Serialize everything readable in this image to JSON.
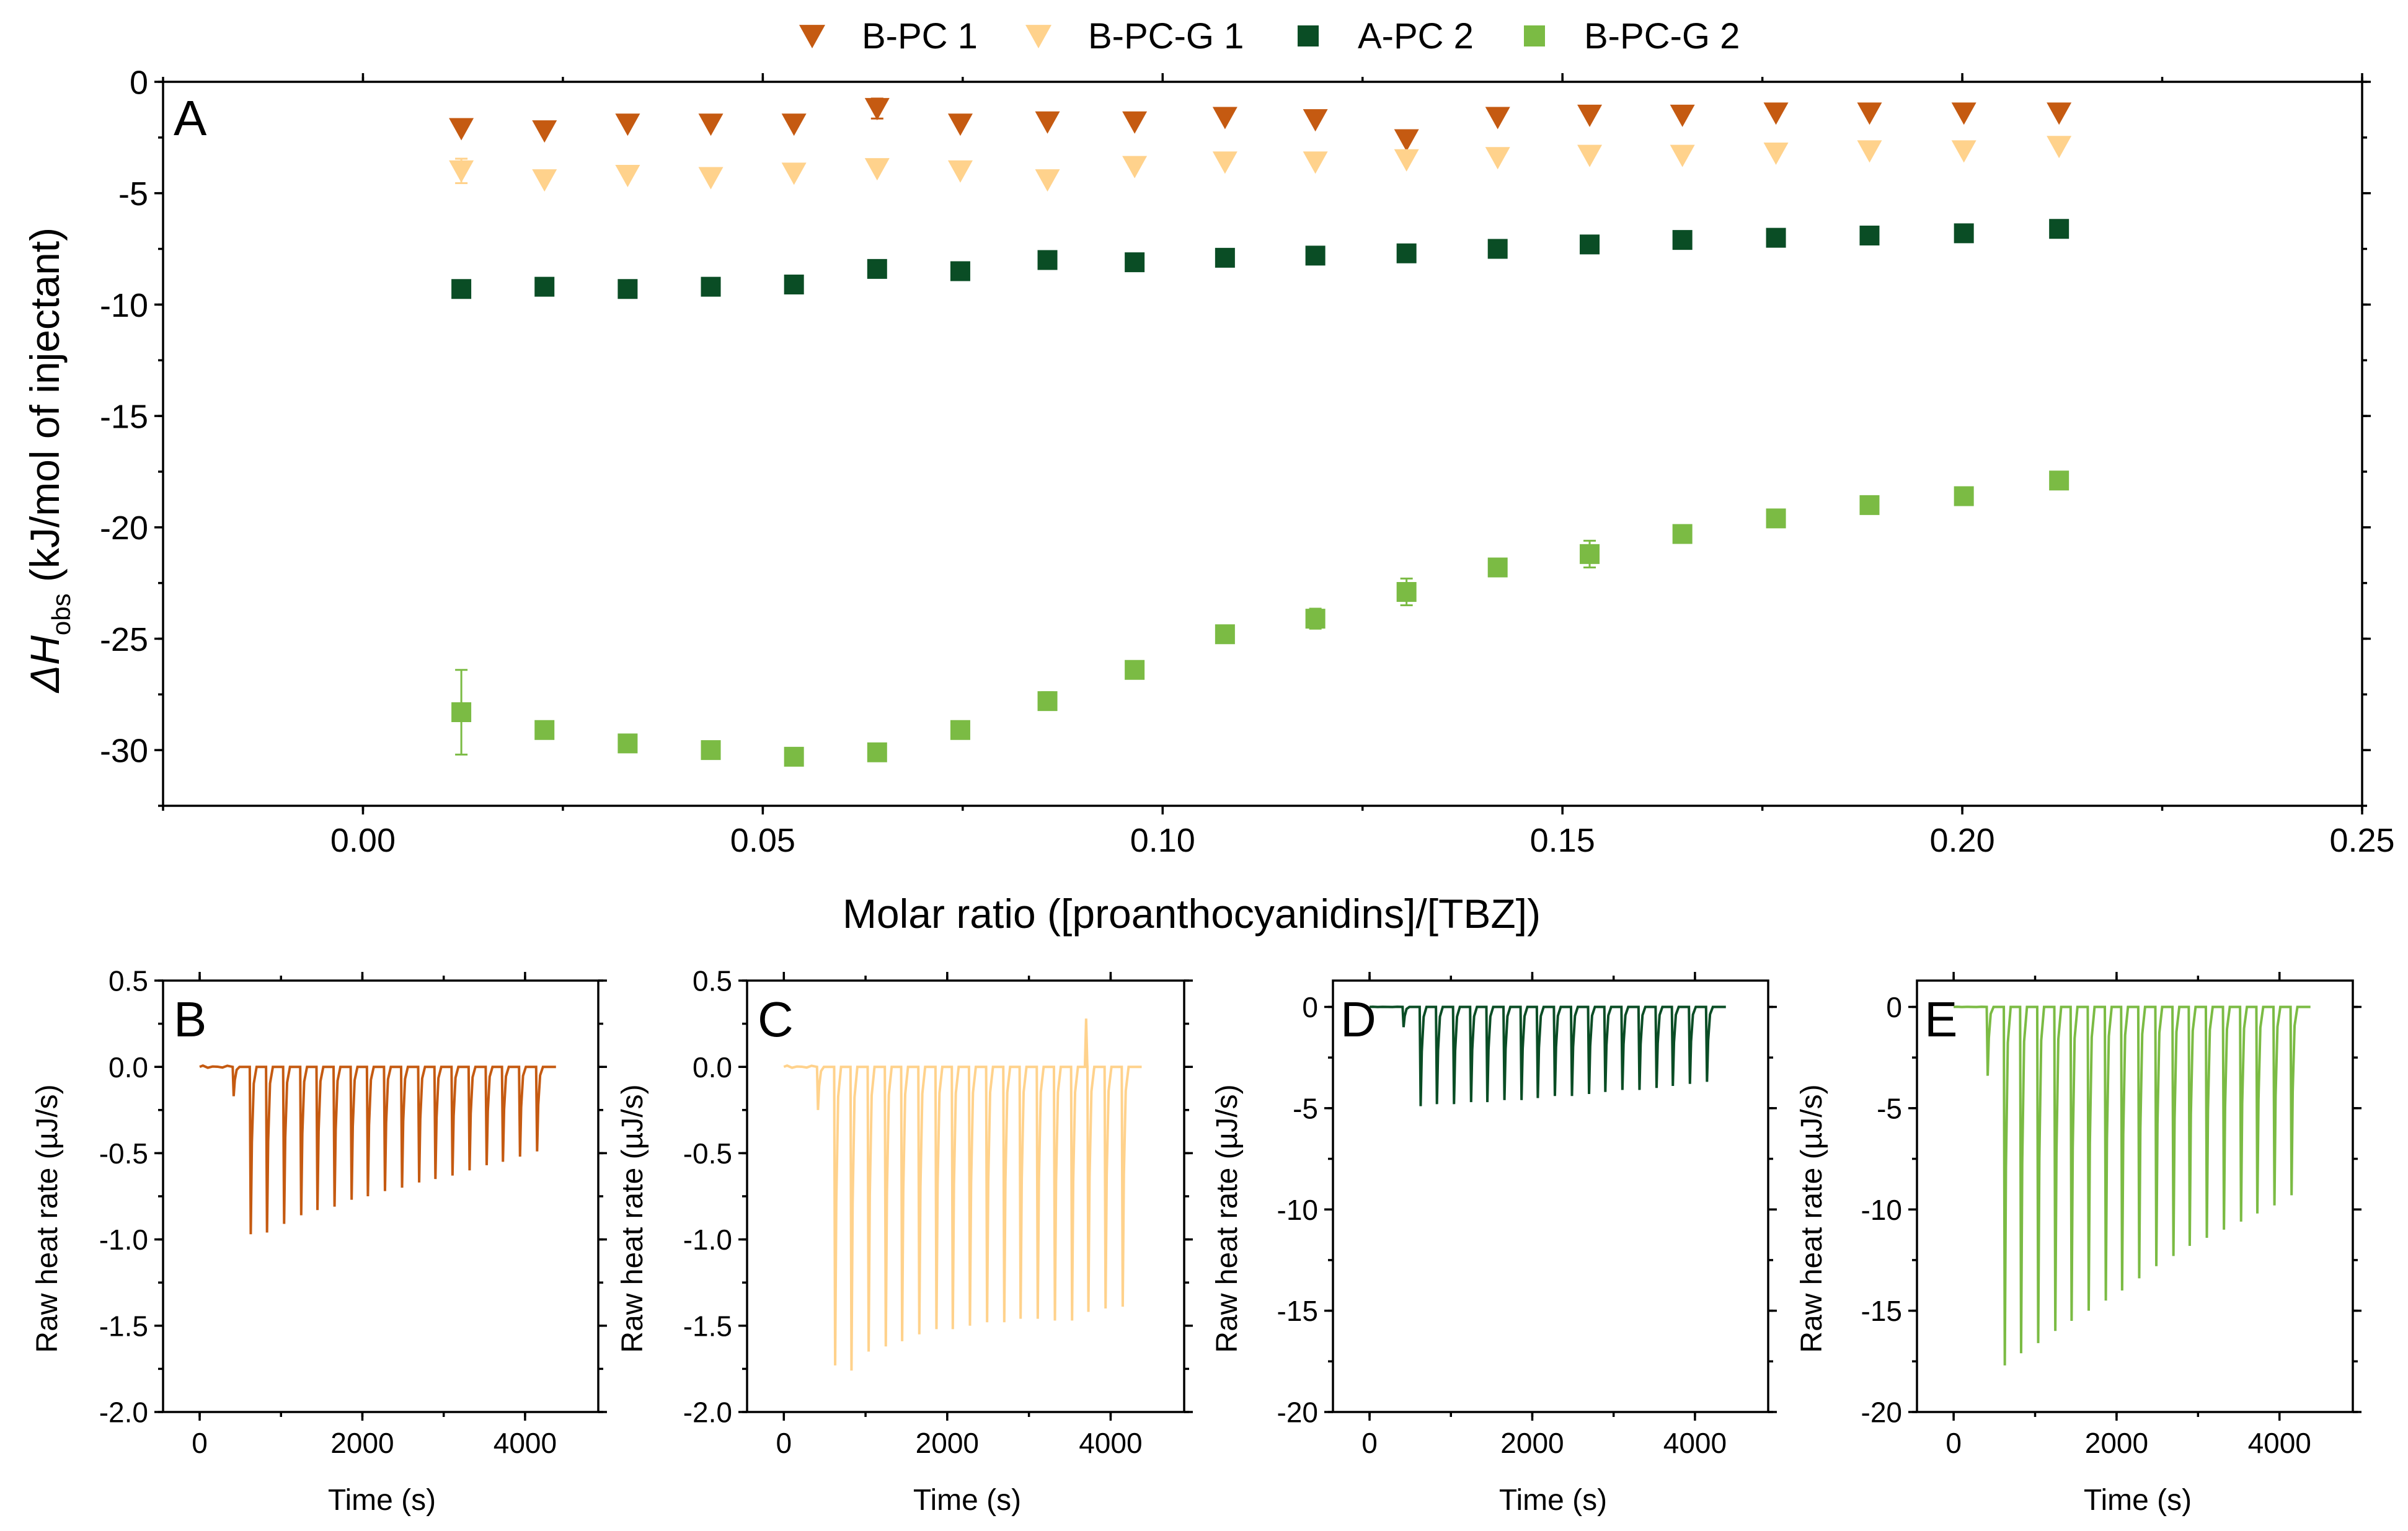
{
  "chart_data": [
    {
      "id": "A",
      "type": "scatter",
      "panel_label": "A",
      "xlabel": "Molar ratio ([proanthocyanidins]/[TBZ])",
      "ylabel_prefix": "ΔH",
      "ylabel_sub": "obs",
      "ylabel_suffix": " (kJ/mol of injectant)",
      "xlim": [
        -0.025,
        0.25
      ],
      "ylim": [
        -32.5,
        0
      ],
      "xticks": [
        0.0,
        0.05,
        0.1,
        0.15,
        0.2,
        0.25
      ],
      "xtick_labels": [
        "0.00",
        "0.05",
        "0.10",
        "0.15",
        "0.20",
        "0.25"
      ],
      "yticks": [
        0,
        -5,
        -10,
        -15,
        -20,
        -25,
        -30
      ],
      "ytick_labels": [
        "0",
        "-5",
        "-10",
        "-15",
        "-20",
        "-25",
        "-30"
      ],
      "legend_position": "top",
      "x": [
        0.0123,
        0.0227,
        0.0331,
        0.0435,
        0.0539,
        0.0643,
        0.0747,
        0.0856,
        0.0965,
        0.1078,
        0.1191,
        0.1305,
        0.1419,
        0.1534,
        0.165,
        0.1767,
        0.1884,
        0.2002,
        0.2121
      ],
      "series": [
        {
          "name": "B-PC 1",
          "marker": "triangle-down",
          "color": "#c55a11",
          "values": [
            -2.1,
            -2.2,
            -1.9,
            -1.9,
            -1.9,
            -1.2,
            -1.9,
            -1.8,
            -1.8,
            -1.6,
            -1.7,
            -2.6,
            -1.6,
            -1.5,
            -1.5,
            -1.4,
            -1.4,
            -1.4,
            -1.4
          ],
          "errors": [
            0,
            0,
            0,
            0,
            0,
            0.45,
            0,
            0,
            0,
            0,
            0,
            0,
            0,
            0,
            0,
            0,
            0,
            0,
            0
          ]
        },
        {
          "name": "B-PC-G 1",
          "marker": "triangle-down",
          "color": "#ffd28c",
          "values": [
            -4.0,
            -4.4,
            -4.2,
            -4.3,
            -4.1,
            -3.9,
            -4.0,
            -4.4,
            -3.8,
            -3.6,
            -3.6,
            -3.5,
            -3.4,
            -3.3,
            -3.3,
            -3.2,
            -3.1,
            -3.1,
            -2.9
          ],
          "errors": [
            0.55,
            0,
            0,
            0,
            0,
            0,
            0,
            0,
            0,
            0,
            0,
            0,
            0,
            0,
            0,
            0,
            0,
            0,
            0
          ]
        },
        {
          "name": "A-PC 2",
          "marker": "square",
          "color": "#0a4d25",
          "values": [
            -9.3,
            -9.2,
            -9.3,
            -9.2,
            -9.1,
            -8.4,
            -8.5,
            -8.0,
            -8.1,
            -7.9,
            -7.8,
            -7.7,
            -7.5,
            -7.3,
            -7.1,
            -7.0,
            -6.9,
            -6.8,
            -6.6
          ],
          "errors": [
            0,
            0,
            0,
            0,
            0,
            0,
            0,
            0,
            0,
            0,
            0,
            0,
            0,
            0,
            0,
            0,
            0,
            0,
            0
          ]
        },
        {
          "name": "B-PC-G 2",
          "marker": "square",
          "color": "#7bbb44",
          "values": [
            -28.3,
            -29.1,
            -29.7,
            -30.0,
            -30.3,
            -30.1,
            -29.1,
            -27.8,
            -26.4,
            -24.8,
            -24.1,
            -22.9,
            -21.8,
            -21.2,
            -20.3,
            -19.6,
            -19.0,
            -18.6,
            -17.9
          ],
          "errors": [
            1.9,
            0,
            0,
            0,
            0,
            0,
            0,
            0.4,
            0.3,
            0,
            0.45,
            0.6,
            0,
            0.6,
            0.4,
            0,
            0.35,
            0,
            0
          ]
        }
      ]
    },
    {
      "id": "B",
      "type": "line",
      "panel_label": "B",
      "xlabel": "Time (s)",
      "ylabel": "Raw heat rate (µJ/s)",
      "xlim": [
        -450,
        4900
      ],
      "ylim": [
        -2.0,
        0.5
      ],
      "xticks": [
        0,
        2000,
        4000
      ],
      "xtick_labels": [
        "0",
        "2000",
        "4000"
      ],
      "yticks": [
        0.5,
        0.0,
        -0.5,
        -1.0,
        -1.5,
        -2.0
      ],
      "ytick_labels": [
        "0.5",
        "0.0",
        "-0.5",
        "-1.0",
        "-1.5",
        "-2.0"
      ],
      "color": "#c55a11",
      "baseline": 0.0,
      "start_time": 0,
      "end_time": 4380,
      "injection_times": [
        410,
        620,
        820,
        1030,
        1240,
        1440,
        1650,
        1860,
        2060,
        2270,
        2480,
        2690,
        2890,
        3100,
        3310,
        3520,
        3720,
        3930,
        4140
      ],
      "peak_values": [
        -0.17,
        -0.97,
        -0.96,
        -0.91,
        -0.86,
        -0.83,
        -0.81,
        -0.77,
        -0.75,
        -0.72,
        -0.7,
        -0.67,
        -0.65,
        -0.63,
        -0.6,
        -0.57,
        -0.55,
        -0.52,
        -0.49
      ]
    },
    {
      "id": "C",
      "type": "line",
      "panel_label": "C",
      "xlabel": "Time (s)",
      "ylabel": "Raw heat rate (µJ/s)",
      "xlim": [
        -450,
        4900
      ],
      "ylim": [
        -2.0,
        0.5
      ],
      "xticks": [
        0,
        2000,
        4000
      ],
      "xtick_labels": [
        "0",
        "2000",
        "4000"
      ],
      "yticks": [
        0.5,
        0.0,
        -0.5,
        -1.0,
        -1.5,
        -2.0
      ],
      "ytick_labels": [
        "0.5",
        "0.0",
        "-0.5",
        "-1.0",
        "-1.5",
        "-2.0"
      ],
      "color": "#ffd28c",
      "baseline": 0.0,
      "start_time": 0,
      "end_time": 4380,
      "injection_times": [
        410,
        620,
        820,
        1030,
        1240,
        1440,
        1650,
        1860,
        2060,
        2270,
        2480,
        2690,
        2890,
        3100,
        3310,
        3520,
        3720,
        3930,
        4140
      ],
      "peak_values": [
        -0.25,
        -1.73,
        -1.76,
        -1.65,
        -1.62,
        -1.59,
        -1.55,
        -1.52,
        -1.52,
        -1.5,
        -1.48,
        -1.48,
        -1.46,
        -1.46,
        -1.47,
        -1.47,
        -1.42,
        -1.4,
        -1.39
      ],
      "spike": {
        "time": 3700,
        "value": 0.28
      }
    },
    {
      "id": "D",
      "type": "line",
      "panel_label": "D",
      "xlabel": "Time (s)",
      "ylabel": "Raw heat rate (µJ/s)",
      "xlim": [
        -450,
        4900
      ],
      "ylim": [
        -20,
        1.3
      ],
      "xticks": [
        0,
        2000,
        4000
      ],
      "xtick_labels": [
        "0",
        "2000",
        "4000"
      ],
      "yticks": [
        0,
        -5,
        -10,
        -15,
        -20
      ],
      "ytick_labels": [
        "0",
        "-5",
        "-10",
        "-15",
        "-20"
      ],
      "color": "#0a4d25",
      "baseline": 0.0,
      "start_time": 0,
      "end_time": 4380,
      "injection_times": [
        410,
        620,
        820,
        1030,
        1240,
        1440,
        1650,
        1860,
        2060,
        2270,
        2480,
        2690,
        2890,
        3100,
        3310,
        3520,
        3720,
        3930,
        4140
      ],
      "peak_values": [
        -1.0,
        -4.9,
        -4.8,
        -4.8,
        -4.7,
        -4.7,
        -4.6,
        -4.6,
        -4.5,
        -4.4,
        -4.4,
        -4.3,
        -4.2,
        -4.1,
        -4.1,
        -4.0,
        -3.9,
        -3.8,
        -3.7
      ]
    },
    {
      "id": "E",
      "type": "line",
      "panel_label": "E",
      "xlabel": "Time (s)",
      "ylabel": "Raw heat rate (µJ/s)",
      "xlim": [
        -450,
        4900
      ],
      "ylim": [
        -20,
        1.3
      ],
      "xticks": [
        0,
        2000,
        4000
      ],
      "xtick_labels": [
        "0",
        "2000",
        "4000"
      ],
      "yticks": [
        0,
        -5,
        -10,
        -15,
        -20
      ],
      "ytick_labels": [
        "0",
        "-5",
        "-10",
        "-15",
        "-20"
      ],
      "color": "#7bbb44",
      "baseline": 0.0,
      "start_time": 0,
      "end_time": 4380,
      "injection_times": [
        410,
        620,
        820,
        1030,
        1240,
        1440,
        1650,
        1860,
        2060,
        2270,
        2480,
        2690,
        2890,
        3100,
        3310,
        3520,
        3720,
        3930,
        4140
      ],
      "peak_values": [
        -3.4,
        -17.7,
        -17.1,
        -16.6,
        -16.0,
        -15.5,
        -15.0,
        -14.5,
        -14.0,
        -13.4,
        -12.8,
        -12.3,
        -11.8,
        -11.4,
        -11.0,
        -10.6,
        -10.2,
        -9.8,
        -9.3
      ]
    }
  ]
}
